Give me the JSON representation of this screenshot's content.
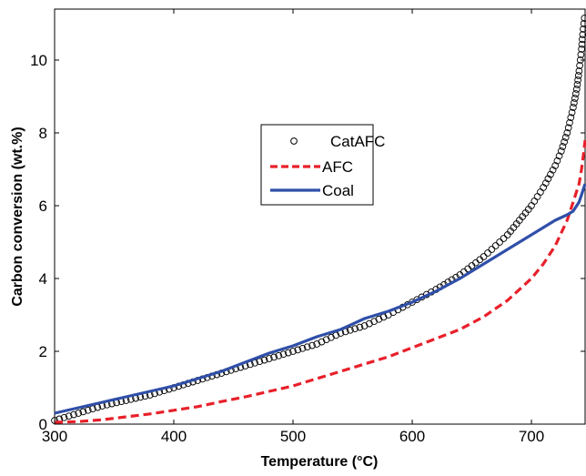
{
  "chart_data": {
    "type": "line",
    "xlabel": "Temperature (°C)",
    "ylabel": "Carbon conversion (wt.%)",
    "xlim": [
      300,
      745
    ],
    "ylim": [
      0,
      11.4
    ],
    "xticks": [
      300,
      400,
      500,
      600,
      700
    ],
    "yticks": [
      0,
      2,
      4,
      6,
      8,
      10
    ],
    "grid": false,
    "legend_position": "center-left",
    "series": [
      {
        "name": "CatAFC",
        "style": "markers",
        "marker": "open-circle",
        "color": "#000000",
        "x": [
          300,
          320,
          340,
          360,
          380,
          400,
          420,
          440,
          460,
          480,
          500,
          520,
          540,
          560,
          580,
          600,
          620,
          640,
          660,
          680,
          700,
          710,
          720,
          725,
          730,
          735,
          738,
          740,
          742,
          743,
          744,
          745
        ],
        "y": [
          0.1,
          0.3,
          0.5,
          0.65,
          0.8,
          1.0,
          1.2,
          1.4,
          1.6,
          1.8,
          2.0,
          2.2,
          2.5,
          2.7,
          3.0,
          3.35,
          3.7,
          4.1,
          4.6,
          5.2,
          6.0,
          6.5,
          7.1,
          7.5,
          8.0,
          8.7,
          9.2,
          9.7,
          10.3,
          10.7,
          11.0,
          11.3
        ]
      },
      {
        "name": "AFC",
        "style": "dashed",
        "color": "#e8202a",
        "x": [
          300,
          320,
          340,
          360,
          380,
          400,
          420,
          440,
          460,
          480,
          500,
          520,
          540,
          560,
          580,
          600,
          620,
          640,
          660,
          680,
          700,
          710,
          720,
          730,
          735,
          740,
          742,
          744,
          745
        ],
        "y": [
          0.05,
          0.07,
          0.12,
          0.2,
          0.28,
          0.38,
          0.48,
          0.62,
          0.75,
          0.9,
          1.05,
          1.25,
          1.45,
          1.65,
          1.85,
          2.1,
          2.35,
          2.6,
          2.95,
          3.4,
          4.0,
          4.4,
          4.9,
          5.6,
          6.1,
          6.6,
          7.0,
          7.5,
          7.8
        ]
      },
      {
        "name": "Coal",
        "style": "solid",
        "color": "#2f4fa8",
        "x": [
          300,
          320,
          340,
          360,
          380,
          400,
          420,
          440,
          460,
          480,
          500,
          520,
          540,
          560,
          580,
          600,
          620,
          640,
          660,
          680,
          700,
          710,
          720,
          730,
          735,
          740,
          742,
          744,
          745
        ],
        "y": [
          0.3,
          0.45,
          0.6,
          0.75,
          0.9,
          1.05,
          1.25,
          1.45,
          1.7,
          1.95,
          2.15,
          2.4,
          2.6,
          2.9,
          3.1,
          3.35,
          3.65,
          4.0,
          4.4,
          4.8,
          5.2,
          5.4,
          5.6,
          5.75,
          5.85,
          6.1,
          6.3,
          6.5,
          6.6
        ]
      }
    ]
  }
}
